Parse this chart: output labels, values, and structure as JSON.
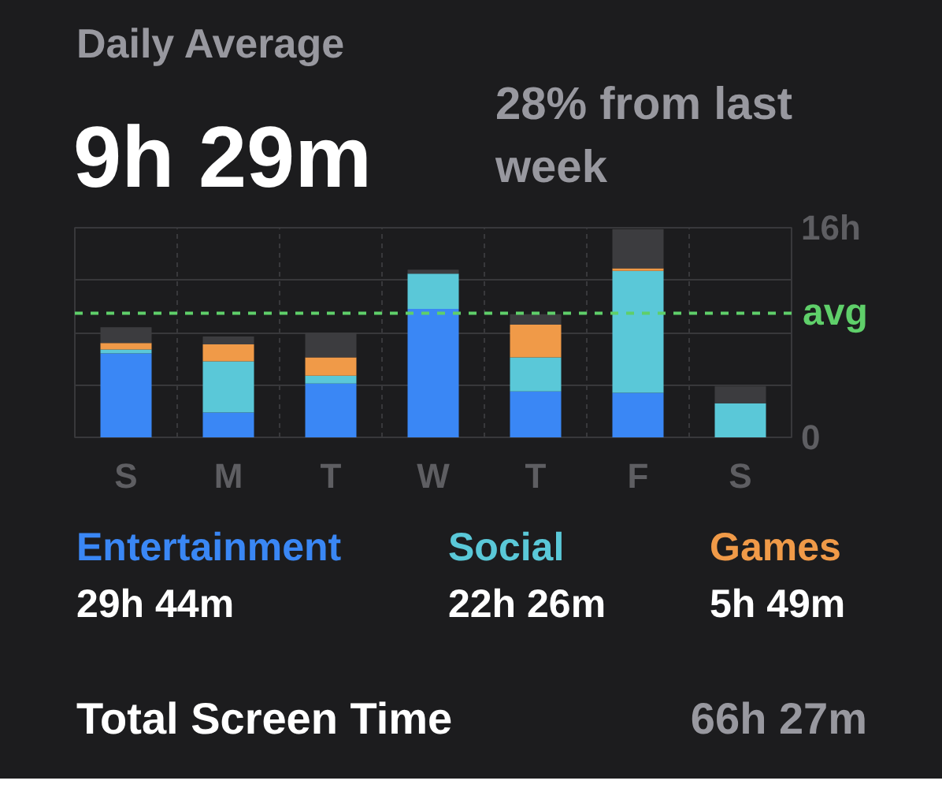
{
  "chart_data": {
    "type": "bar",
    "title": "Daily Average",
    "subtitle": "9h 29m",
    "categories": [
      "S",
      "M",
      "T",
      "W",
      "T",
      "F",
      "S"
    ],
    "stacked": true,
    "series": [
      {
        "name": "Entertainment",
        "color": "#3a87f5",
        "values": [
          6.4,
          1.9,
          4.1,
          9.8,
          3.5,
          3.4,
          0
        ]
      },
      {
        "name": "Social",
        "color": "#5ac8d8",
        "values": [
          0.3,
          3.9,
          0.6,
          2.7,
          2.6,
          9.3,
          2.6
        ]
      },
      {
        "name": "Games",
        "color": "#f09a48",
        "values": [
          0.5,
          1.3,
          1.4,
          0,
          2.5,
          0.2,
          0
        ]
      },
      {
        "color": "#3c3c3f",
        "values": [
          1.2,
          0.6,
          1.9,
          0.3,
          0.8,
          3.0,
          1.3
        ]
      }
    ],
    "ylim": [
      0,
      16
    ],
    "yticks": [
      0,
      {
        "value": 4,
        "label": null
      },
      {
        "value": 8,
        "label": null
      },
      {
        "value": 12,
        "label": null
      },
      {
        "value": 16,
        "label": "16h"
      }
    ],
    "grid": true,
    "legend": "bottom",
    "ref_lines": [
      {
        "axis": "y",
        "value": 9.48,
        "label": "avg",
        "color": "#5fcf6a",
        "line_style": "dashed"
      }
    ],
    "annotations": [
      "28% from last week",
      "29h 44m",
      "22h 26m",
      "5h 49m",
      "Total Screen Time",
      "66h 27m"
    ]
  }
}
